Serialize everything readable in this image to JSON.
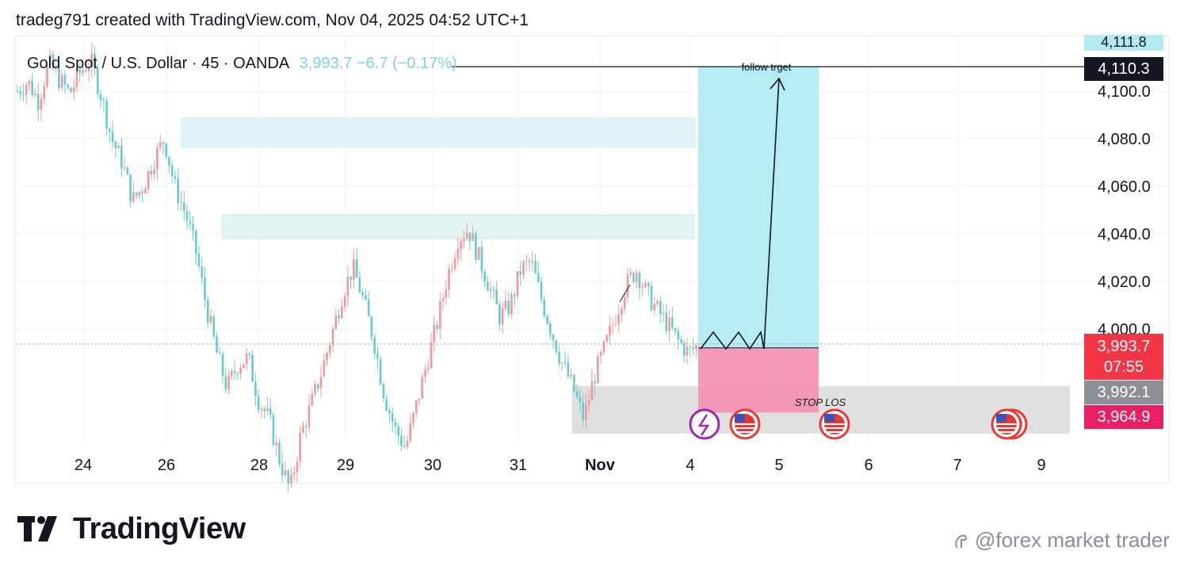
{
  "header": {
    "title": "tradeg791 created with TradingView.com, Nov 04, 2025 04:52 UTC+1"
  },
  "symbol": {
    "name": "Gold Spot / U.S. Dollar · 45 · OANDA",
    "quote": "3,993.7  −6.7 (−0.17%)"
  },
  "annotations": {
    "target_label": "follow trget",
    "stop_label": "STOP LOS"
  },
  "price_tags": {
    "top_partial": "4,111.8",
    "target": "4,110.3",
    "last": "3,993.7",
    "countdown": "07:55",
    "entry": "3,992.1",
    "stop": "3,964.9"
  },
  "footer": {
    "brand": "TradingView",
    "watermark": "@forex market trader"
  },
  "colors": {
    "up": "#ef9a9a",
    "down": "#67cbd3",
    "target_zone": "#b2ebf2",
    "stop_zone": "#f48fb1",
    "grey_zone": "#e0e0e0",
    "tag_dark": "#131722",
    "tag_red": "#f23645",
    "tag_grey": "#8a8f98",
    "tag_pink": "#e91e63"
  },
  "chart_data": {
    "type": "candlestick",
    "y_ticks": [
      "4,100.0",
      "4,080.0",
      "4,060.0",
      "4,040.0",
      "4,020.0",
      "4,000.0"
    ],
    "y_tick_values": [
      4100,
      4080,
      4060,
      4040,
      4020,
      4000
    ],
    "x_ticks": [
      "24",
      "26",
      "28",
      "29",
      "30",
      "31",
      "Nov",
      "4",
      "5",
      "6",
      "7",
      "9"
    ],
    "ylim": [
      3955,
      4115
    ],
    "zones": [
      {
        "name": "resistance-upper",
        "from": 4076,
        "to": 4089
      },
      {
        "name": "resistance-lower",
        "from": 4038,
        "to": 4048
      },
      {
        "name": "support",
        "from": 3956,
        "to": 3976
      }
    ],
    "position": {
      "entry": 3992.1,
      "target": 4110.3,
      "stop": 3964.9
    },
    "close_path": [
      4100,
      4104,
      4096,
      4112,
      4105,
      4099,
      4108,
      4113,
      4098,
      4080,
      4070,
      4054,
      4060,
      4071,
      4080,
      4060,
      4049,
      4033,
      4010,
      3990,
      3975,
      3985,
      3988,
      3970,
      3962,
      3945,
      3932,
      3955,
      3968,
      3982,
      3998,
      4015,
      4026,
      4012,
      3995,
      3972,
      3958,
      3950,
      3967,
      3985,
      4002,
      4022,
      4038,
      4042,
      4030,
      4018,
      4005,
      4010,
      4025,
      4028,
      4012,
      3998,
      3985,
      3975,
      3962,
      3980,
      3992,
      4005,
      4018,
      4025,
      4015,
      4008,
      4002,
      3995,
      3990,
      3993.7
    ]
  }
}
